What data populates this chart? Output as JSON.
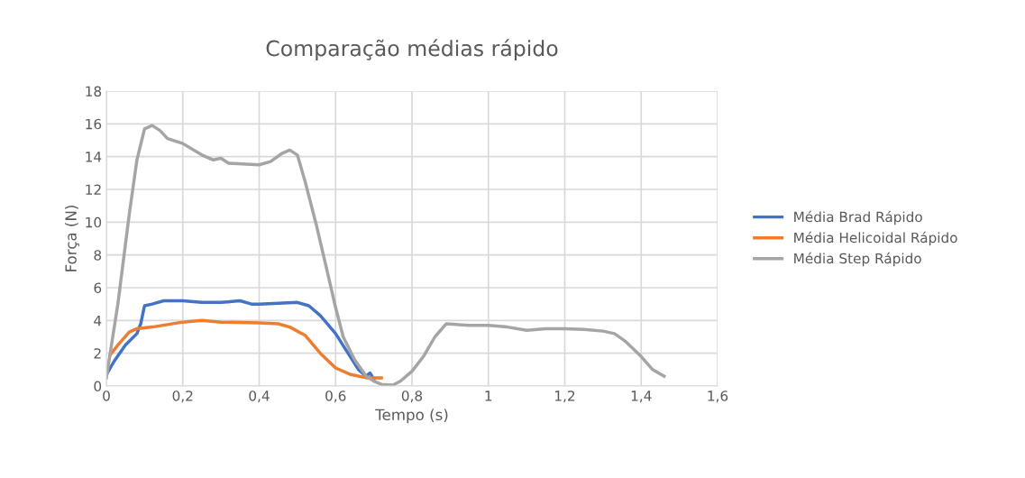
{
  "chart_data": {
    "type": "line",
    "title": "Comparação médias rápido",
    "xlabel": "Tempo (s)",
    "ylabel": "Força (N)",
    "xlim": [
      0,
      1.6
    ],
    "xticks": [
      0,
      {
        "value": 0.2,
        "label": "0,2"
      },
      {
        "value": 0.4,
        "label": "0,4"
      },
      {
        "value": 0.6,
        "label": "0,6"
      },
      {
        "value": 0.8,
        "label": "0,8"
      },
      1,
      {
        "value": 1.2,
        "label": "1,2"
      },
      {
        "value": 1.4,
        "label": "1,4"
      },
      {
        "value": 1.6,
        "label": "1,6"
      }
    ],
    "ylim": [
      0,
      18
    ],
    "yticks": [
      0,
      2,
      4,
      6,
      8,
      10,
      12,
      14,
      16,
      18
    ],
    "grid": true,
    "legend": "right",
    "marker": "none",
    "line_style": "solid",
    "series": [
      {
        "name": "Média Brad Rápido",
        "color": "#4472c4",
        "x": [
          0,
          0.02,
          0.05,
          0.08,
          0.09,
          0.1,
          0.12,
          0.15,
          0.2,
          0.25,
          0.3,
          0.35,
          0.38,
          0.4,
          0.45,
          0.5,
          0.53,
          0.56,
          0.6,
          0.63,
          0.66,
          0.68,
          0.69,
          0.7
        ],
        "values": [
          0.7,
          1.5,
          2.5,
          3.2,
          3.8,
          4.9,
          5.0,
          5.2,
          5.2,
          5.1,
          5.1,
          5.2,
          5.0,
          5.0,
          5.05,
          5.1,
          4.9,
          4.3,
          3.2,
          2.1,
          1.0,
          0.6,
          0.8,
          0.4
        ]
      },
      {
        "name": "Média Helicoidal Rápido",
        "color": "#ed7d31",
        "x": [
          0.01,
          0.03,
          0.06,
          0.08,
          0.12,
          0.2,
          0.25,
          0.3,
          0.4,
          0.45,
          0.48,
          0.52,
          0.56,
          0.6,
          0.64,
          0.68,
          0.72
        ],
        "values": [
          1.9,
          2.5,
          3.3,
          3.5,
          3.6,
          3.9,
          4.0,
          3.9,
          3.85,
          3.8,
          3.6,
          3.1,
          2.0,
          1.1,
          0.7,
          0.5,
          0.5
        ]
      },
      {
        "name": "Média Step Rápido",
        "color": "#a5a5a5",
        "x": [
          0,
          0.03,
          0.06,
          0.08,
          0.1,
          0.12,
          0.14,
          0.16,
          0.2,
          0.25,
          0.28,
          0.3,
          0.32,
          0.4,
          0.43,
          0.46,
          0.48,
          0.5,
          0.52,
          0.55,
          0.58,
          0.6,
          0.62,
          0.65,
          0.68,
          0.7,
          0.72,
          0.75,
          0.77,
          0.8,
          0.83,
          0.86,
          0.89,
          0.95,
          1.0,
          1.05,
          1.1,
          1.15,
          1.2,
          1.25,
          1.3,
          1.33,
          1.36,
          1.4,
          1.43,
          1.46
        ],
        "values": [
          0.5,
          5,
          10.5,
          13.8,
          15.7,
          15.9,
          15.6,
          15.1,
          14.8,
          14.1,
          13.8,
          13.9,
          13.6,
          13.5,
          13.7,
          14.2,
          14.4,
          14.1,
          12.5,
          9.8,
          6.8,
          4.8,
          3.0,
          1.6,
          0.6,
          0.3,
          0.1,
          0.05,
          0.3,
          0.9,
          1.8,
          3.0,
          3.8,
          3.7,
          3.7,
          3.6,
          3.4,
          3.5,
          3.5,
          3.45,
          3.35,
          3.2,
          2.7,
          1.8,
          1.0,
          0.6
        ]
      }
    ]
  }
}
